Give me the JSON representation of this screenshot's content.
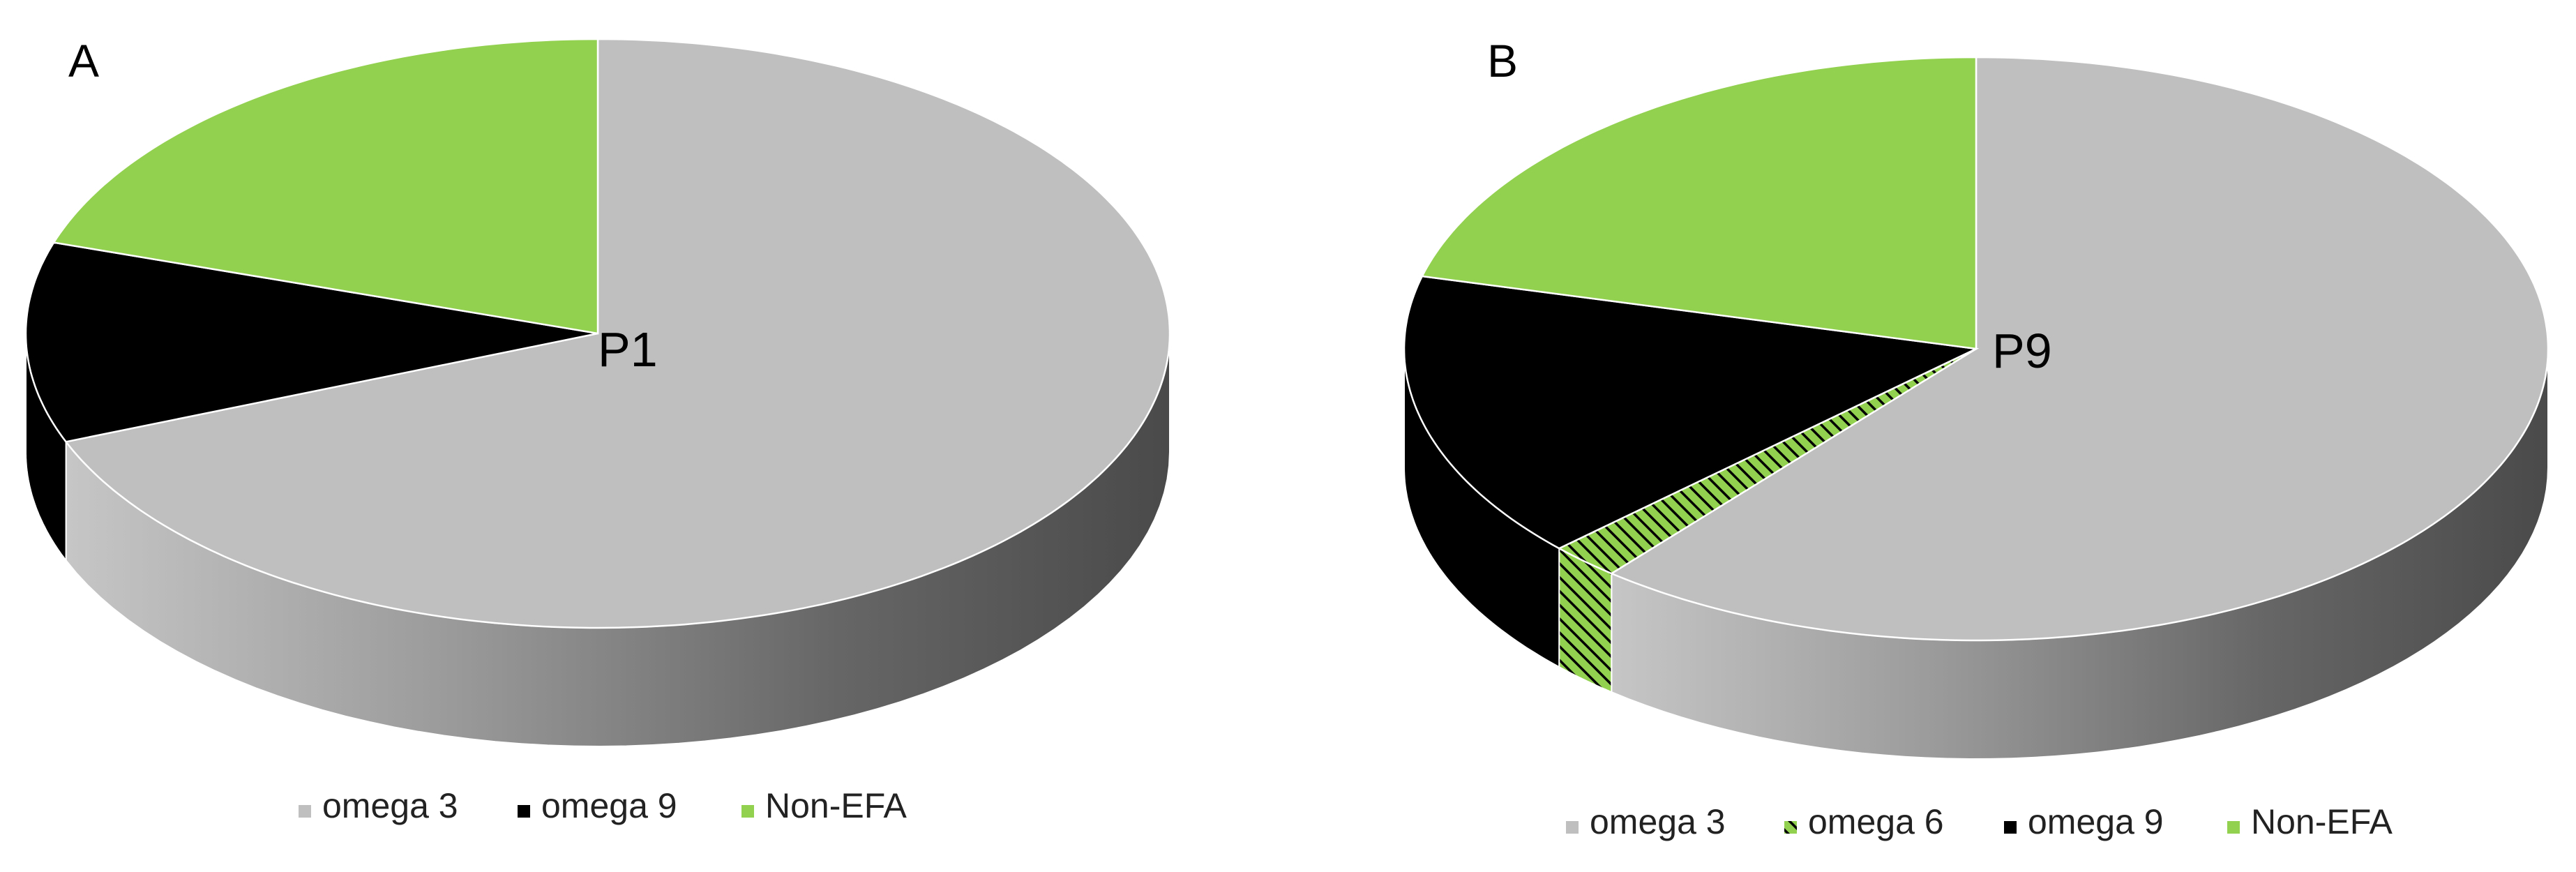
{
  "chart_data": [
    {
      "type": "pie",
      "panel_label": "A",
      "center_label": "P1",
      "three_d": true,
      "legend_position": "bottom",
      "slices": [
        {
          "name": "omega 3",
          "value": 69,
          "color": "#bfbfbf"
        },
        {
          "name": "omega 9",
          "value": 11,
          "color": "#000000"
        },
        {
          "name": "Non-EFA",
          "value": 20,
          "color": "#92d050"
        }
      ]
    },
    {
      "type": "pie",
      "panel_label": "B",
      "center_label": "P9",
      "three_d": true,
      "legend_position": "bottom",
      "slices": [
        {
          "name": "omega 3",
          "value": 61,
          "color": "#bfbfbf"
        },
        {
          "name": "omega 6",
          "value": 2,
          "color": "#92d050",
          "pattern": "hatch"
        },
        {
          "name": "omega 9",
          "value": 16,
          "color": "#000000"
        },
        {
          "name": "Non-EFA",
          "value": 21,
          "color": "#92d050"
        }
      ]
    }
  ]
}
